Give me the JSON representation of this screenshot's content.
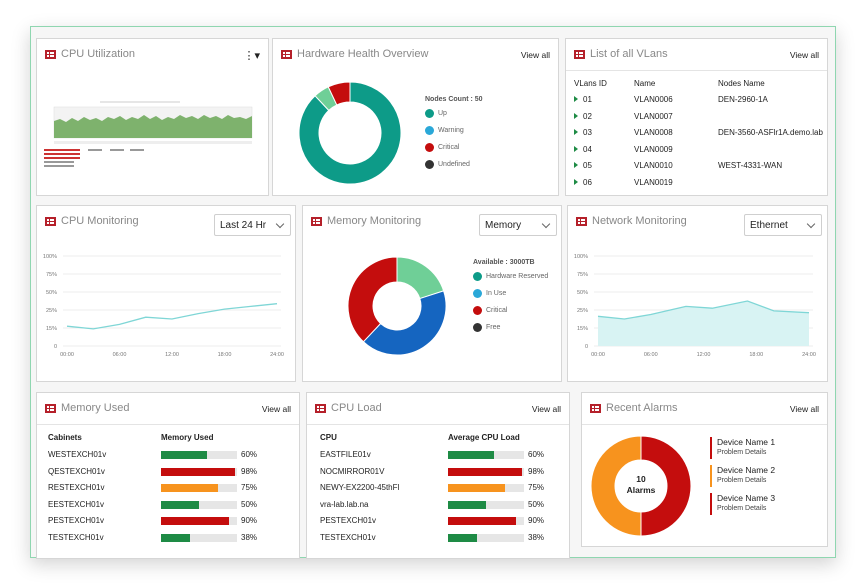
{
  "colors": {
    "green": "#1e8b45",
    "red": "#c40d0d",
    "orange": "#f7931e",
    "teal": "#0d9b88",
    "blue": "#1565c0",
    "mint": "#6fcf97",
    "dark": "#333333",
    "line": "#7fd6d6",
    "area": "#d8f3f3"
  },
  "cpu_utilization": {
    "title": "CPU Utilization",
    "menu_icon": "kebab-icon"
  },
  "hardware_health": {
    "title": "Hardware Health Overview",
    "view_all": "View all",
    "nodes_count": "Nodes Count : 50",
    "legend": [
      "Up",
      "Warning",
      "Critical",
      "Undefined"
    ],
    "chart_data": {
      "type": "pie",
      "categories": [
        "Up",
        "Warning",
        "Critical",
        "Undefined"
      ],
      "values": [
        88,
        5,
        7,
        0
      ]
    }
  },
  "vlans": {
    "title": "List of all VLans",
    "view_all": "View all",
    "columns": [
      "VLans ID",
      "Name",
      "Nodes Name"
    ],
    "rows": [
      [
        "01",
        "VLAN0006",
        "DEN-2960-1A"
      ],
      [
        "02",
        "VLAN0007",
        ""
      ],
      [
        "03",
        "VLAN0008",
        "DEN-3560-ASFlr1A.demo.lab"
      ],
      [
        "04",
        "VLAN0009",
        ""
      ],
      [
        "05",
        "VLAN0010",
        "WEST-4331-WAN"
      ],
      [
        "06",
        "VLAN0019",
        ""
      ]
    ]
  },
  "cpu_monitoring": {
    "title": "CPU Monitoring",
    "select": "Last 24 Hr",
    "chart_data": {
      "type": "line",
      "x": [
        "00:00",
        "06:00",
        "12:00",
        "18:00",
        "24:00"
      ],
      "y_ticks": [
        "0",
        "15%",
        "25%",
        "50%",
        "75%",
        "100%"
      ],
      "points": [
        [
          0,
          22
        ],
        [
          3,
          19
        ],
        [
          6,
          24
        ],
        [
          9,
          32
        ],
        [
          12,
          30
        ],
        [
          15,
          36
        ],
        [
          18,
          41
        ],
        [
          21,
          44
        ],
        [
          24,
          47
        ]
      ],
      "ylim": [
        0,
        100
      ]
    }
  },
  "memory_monitoring": {
    "title": "Memory Monitoring",
    "select": "Memory",
    "available": "Available : 3000TB",
    "legend": [
      "Hardware Reserved",
      "In Use",
      "Critical",
      "Free"
    ],
    "chart_data": {
      "type": "pie",
      "categories": [
        "Hardware Reserved",
        "In Use",
        "Critical",
        "Free"
      ],
      "values": [
        20,
        42,
        38,
        0
      ]
    }
  },
  "network_monitoring": {
    "title": "Network Monitoring",
    "select": "Ethernet",
    "chart_data": {
      "type": "area",
      "x": [
        "00:00",
        "06:00",
        "12:00",
        "18:00",
        "24:00"
      ],
      "y_ticks": [
        "0",
        "15%",
        "25%",
        "50%",
        "75%",
        "100%"
      ],
      "points": [
        [
          0,
          33
        ],
        [
          3,
          30
        ],
        [
          6,
          35
        ],
        [
          10,
          44
        ],
        [
          13,
          42
        ],
        [
          17,
          50
        ],
        [
          20,
          39
        ],
        [
          24,
          37
        ]
      ],
      "ylim": [
        0,
        100
      ]
    }
  },
  "memory_used": {
    "title": "Memory Used",
    "view_all": "View all",
    "col1": "Cabinets",
    "col2": "Memory Used",
    "rows": [
      {
        "name": "WESTEXCH01v",
        "pct": 60,
        "label": "60%",
        "color": "#1e8b45"
      },
      {
        "name": "QESTEXCH01v",
        "pct": 98,
        "label": "98%",
        "color": "#c40d0d"
      },
      {
        "name": "RESTEXCH01v",
        "pct": 75,
        "label": "75%",
        "color": "#f7931e"
      },
      {
        "name": "EESTEXCH01v",
        "pct": 50,
        "label": "50%",
        "color": "#1e8b45"
      },
      {
        "name": "PESTEXCH01v",
        "pct": 90,
        "label": "90%",
        "color": "#c40d0d"
      },
      {
        "name": "TESTEXCH01v",
        "pct": 38,
        "label": "38%",
        "color": "#1e8b45"
      }
    ]
  },
  "cpu_load": {
    "title": "CPU Load",
    "view_all": "View all",
    "col1": "CPU",
    "col2": "Average CPU Load",
    "rows": [
      {
        "name": "EASTFILE01v",
        "pct": 60,
        "label": "60%",
        "color": "#1e8b45"
      },
      {
        "name": "NOCMIRROR01V",
        "pct": 98,
        "label": "98%",
        "color": "#c40d0d"
      },
      {
        "name": "NEWY-EX2200-45thFl",
        "pct": 75,
        "label": "75%",
        "color": "#f7931e"
      },
      {
        "name": "vra-lab.lab.na",
        "pct": 50,
        "label": "50%",
        "color": "#1e8b45"
      },
      {
        "name": "PESTEXCH01v",
        "pct": 90,
        "label": "90%",
        "color": "#c40d0d"
      },
      {
        "name": "TESTEXCH01v",
        "pct": 38,
        "label": "38%",
        "color": "#1e8b45"
      }
    ]
  },
  "recent_alarms": {
    "title": "Recent Alarms",
    "view_all": "View all",
    "center_count": "10",
    "center_label": "Alarms",
    "chart_data": {
      "type": "pie",
      "categories": [
        "Critical",
        "Warning"
      ],
      "values": [
        50,
        50
      ]
    },
    "items": [
      {
        "name": "Device Name 1",
        "detail": "Problem Details",
        "color": "#c40d0d"
      },
      {
        "name": "Device Name 2",
        "detail": "Problem Details",
        "color": "#f7931e"
      },
      {
        "name": "Device Name 3",
        "detail": "Problem Details",
        "color": "#c40d0d"
      }
    ]
  }
}
